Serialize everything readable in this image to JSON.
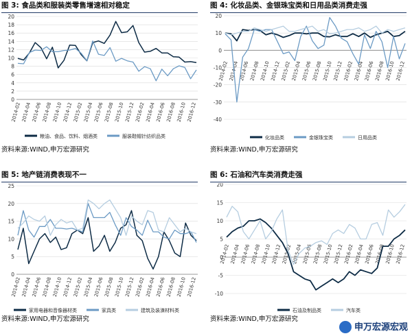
{
  "colors": {
    "navy": "#0d2b45",
    "mid": "#6b9ac4",
    "light": "#b5cde0",
    "grid": "#d9d9d9",
    "axis": "#7f7f7f"
  },
  "x_labels": [
    "2014-02",
    "2014-04",
    "2014-06",
    "2014-08",
    "2014-10",
    "2014-12",
    "2015-02",
    "2015-04",
    "2015-06",
    "2015-08",
    "2015-10",
    "2015-12",
    "2016-02",
    "2016-04",
    "2016-06",
    "2016-08",
    "2016-10",
    "2016-12"
  ],
  "watermark": "申万宏源宏观",
  "chart_data": [
    {
      "type": "line",
      "figure_label": "图 3:",
      "title": "食品类和服装类零售增速相对稳定",
      "source": "资料来源:WIND,申万宏源研究",
      "ylim": [
        0,
        20
      ],
      "yticks": [
        0,
        2,
        4,
        6,
        8,
        10,
        12,
        14,
        16,
        18,
        20
      ],
      "series": [
        {
          "name": "粮油、食品、饮料、烟酒类",
          "color": "navy",
          "width": 1.5,
          "values": [
            9.9,
            9.5,
            11.2,
            13.7,
            12.5,
            9.8,
            12.6,
            7.6,
            9.4,
            13.1,
            13.0,
            10.8,
            9.3,
            13.7,
            14.1,
            13.5,
            15.5,
            18.8,
            16.1,
            16.3,
            17.8,
            13.7,
            11.4,
            11.6,
            12.3,
            11.2,
            11.2,
            10.3,
            10.2,
            9.0,
            9.1,
            8.9
          ]
        },
        {
          "name": "服装鞋帽针纺织品类",
          "color": "mid",
          "width": 1.3,
          "values": [
            8.7,
            8.6,
            11.3,
            11.9,
            11.8,
            12.7,
            11.5,
            11.5,
            11.8,
            11.9,
            12.3,
            11.1,
            9.3,
            14.1,
            10.9,
            10.6,
            12.5,
            9.2,
            9.9,
            9.3,
            9.0,
            6.8,
            7.9,
            7.4,
            4.5,
            7.3,
            5.7,
            7.4,
            8.1,
            7.7,
            5.0,
            7.1
          ]
        }
      ]
    },
    {
      "type": "line",
      "figure_label": "图 4:",
      "title": "化妆品类、金银珠宝类和日用品类消费走强",
      "source": "资料来源:WIND,申万宏源研究",
      "ylim": [
        -40,
        20
      ],
      "yticks": [
        -40,
        -30,
        -20,
        -10,
        0,
        10,
        20
      ],
      "series": [
        {
          "name": "化妆品类",
          "color": "navy",
          "width": 1.8,
          "values": [
            10,
            9.5,
            5.5,
            12,
            11.5,
            12,
            11.5,
            9,
            10,
            9,
            7.5,
            8.5,
            10,
            10,
            9.5,
            10,
            10,
            8,
            7.8,
            9,
            8,
            8,
            9.6,
            8,
            10,
            7.5,
            9,
            10,
            11,
            8,
            8.5,
            11
          ]
        },
        {
          "name": "金银珠宝类",
          "color": "mid",
          "width": 1.3,
          "values": [
            9.5,
            6,
            -30,
            -4,
            1,
            12,
            11,
            12,
            12,
            5,
            -2,
            -1,
            -6,
            8,
            14,
            5.5,
            1,
            3,
            19,
            14,
            7,
            5,
            -2,
            -8,
            9,
            1,
            11,
            5,
            -10,
            8,
            -5,
            4
          ]
        },
        {
          "name": "日用品类",
          "color": "light",
          "width": 1.3,
          "values": [
            10,
            9,
            10,
            11,
            11,
            13,
            12,
            11,
            12,
            13,
            14,
            11,
            11,
            12,
            13,
            14,
            11,
            12,
            9.5,
            10,
            11,
            12,
            12,
            13,
            11,
            12,
            14,
            10,
            12,
            11,
            12,
            13
          ]
        }
      ]
    },
    {
      "type": "line",
      "figure_label": "图 5:",
      "title": "地产链消费表现不一",
      "source": "资料来源:WIND,申万宏源研究",
      "ylim": [
        0,
        25
      ],
      "yticks": [
        0,
        5,
        10,
        15,
        20,
        25
      ],
      "series": [
        {
          "name": "家用电器和音像器材类",
          "color": "navy",
          "width": 1.5,
          "values": [
            7,
            13,
            3,
            6.5,
            10,
            11.5,
            9,
            10.5,
            7,
            7.5,
            11.5,
            12.5,
            11.5,
            16,
            6.5,
            8,
            11,
            6.5,
            9,
            13,
            14,
            18,
            11,
            9.5,
            4.5,
            1.5,
            5,
            12,
            9.5,
            6,
            5,
            14.5,
            11,
            9.5
          ]
        },
        {
          "name": "家具类",
          "color": "mid",
          "width": 1.3,
          "values": [
            11,
            18,
            12.5,
            10.5,
            13.5,
            13.5,
            15.5,
            13,
            13,
            12.8,
            13,
            12.5,
            12,
            20,
            16,
            16,
            16,
            17.5,
            14,
            11,
            16,
            13.5,
            12.5,
            11,
            15.3,
            12,
            12,
            10.5,
            10,
            12.5,
            11.5,
            11.5,
            12,
            9
          ]
        },
        {
          "name": "建筑及装潢材料类",
          "color": "light",
          "width": 1.3,
          "values": [
            13,
            14.5,
            16.5,
            15.5,
            15,
            16.5,
            11,
            14,
            15.5,
            14.5,
            15,
            12.5,
            13,
            21,
            20,
            18.5,
            20,
            21,
            18.5,
            16,
            11,
            16.5,
            15,
            14,
            18,
            17.5,
            12.5,
            12,
            16,
            14,
            12,
            13,
            12,
            11.5
          ]
        }
      ]
    },
    {
      "type": "line",
      "figure_label": "图 6:",
      "title": "石油和汽车类消费走强",
      "source": "资料来源:WIND,申万宏源研究",
      "ylim": [
        -10,
        20
      ],
      "yticks": [
        -10,
        -5,
        0,
        5,
        10,
        15,
        20
      ],
      "series": [
        {
          "name": "石油及制品类",
          "color": "navy",
          "width": 1.8,
          "values": [
            5.5,
            7,
            8,
            8.5,
            10,
            10,
            10.5,
            9.5,
            8,
            6,
            4,
            1,
            -4,
            -5,
            -6,
            -6.5,
            -9,
            -8,
            -7,
            -6,
            -7,
            -6,
            -4,
            -5,
            -3.5,
            -4,
            -4.5,
            -3,
            3,
            3,
            5,
            6,
            7.5
          ]
        },
        {
          "name": "汽车类",
          "color": "light",
          "width": 1.3,
          "values": [
            11,
            14,
            12.5,
            7,
            5,
            7.5,
            10,
            5,
            7,
            10.5,
            13,
            2,
            -2,
            1,
            2.5,
            3,
            4,
            4.5,
            3.5,
            6.5,
            7.5,
            6.5,
            9,
            8,
            5,
            5,
            9,
            9.5,
            6,
            13,
            11,
            12.5,
            14.5
          ]
        }
      ]
    }
  ]
}
